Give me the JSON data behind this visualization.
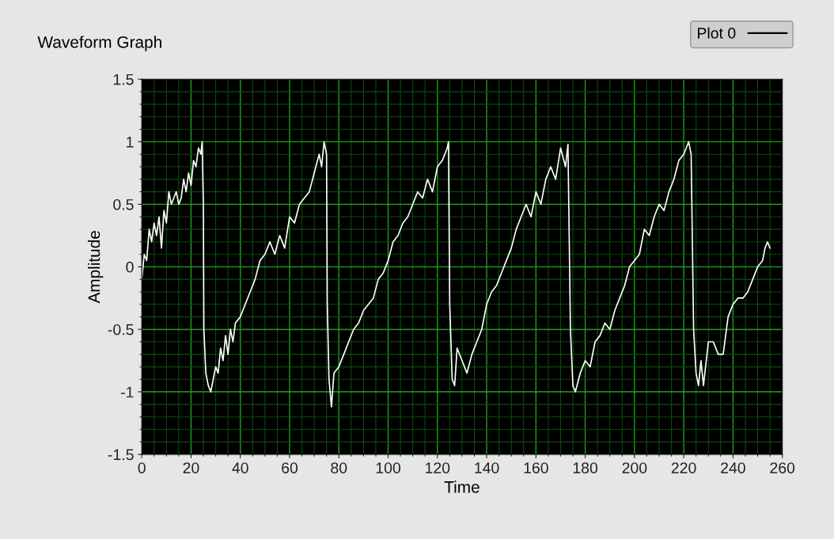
{
  "chart_data": {
    "type": "line",
    "title": "Waveform Graph",
    "xlabel": "Time",
    "ylabel": "Amplitude",
    "xlim": [
      0,
      260
    ],
    "xticks": [
      0,
      {
        "value": 5,
        "label": null
      },
      {
        "value": 10,
        "label": null
      },
      {
        "value": 15,
        "label": null
      },
      20,
      {
        "value": 25,
        "label": null
      },
      {
        "value": 30,
        "label": null
      },
      {
        "value": 35,
        "label": null
      },
      40,
      {
        "value": 45,
        "label": null
      },
      {
        "value": 50,
        "label": null
      },
      {
        "value": 55,
        "label": null
      },
      60,
      {
        "value": 65,
        "label": null
      },
      {
        "value": 70,
        "label": null
      },
      {
        "value": 75,
        "label": null
      },
      80,
      {
        "value": 85,
        "label": null
      },
      {
        "value": 90,
        "label": null
      },
      {
        "value": 95,
        "label": null
      },
      100,
      {
        "value": 105,
        "label": null
      },
      {
        "value": 110,
        "label": null
      },
      {
        "value": 115,
        "label": null
      },
      120,
      {
        "value": 125,
        "label": null
      },
      {
        "value": 130,
        "label": null
      },
      {
        "value": 135,
        "label": null
      },
      140,
      {
        "value": 145,
        "label": null
      },
      {
        "value": 150,
        "label": null
      },
      {
        "value": 155,
        "label": null
      },
      160,
      {
        "value": 165,
        "label": null
      },
      {
        "value": 170,
        "label": null
      },
      {
        "value": 175,
        "label": null
      },
      180,
      {
        "value": 185,
        "label": null
      },
      {
        "value": 190,
        "label": null
      },
      {
        "value": 195,
        "label": null
      },
      200,
      {
        "value": 205,
        "label": null
      },
      {
        "value": 210,
        "label": null
      },
      {
        "value": 215,
        "label": null
      },
      220,
      {
        "value": 225,
        "label": null
      },
      {
        "value": 230,
        "label": null
      },
      {
        "value": 235,
        "label": null
      },
      240,
      {
        "value": 245,
        "label": null
      },
      {
        "value": 250,
        "label": null
      },
      {
        "value": 255,
        "label": null
      },
      260
    ],
    "ylim": [
      -1.5,
      1.5
    ],
    "yticks": [
      -1.5,
      {
        "value": -1.4,
        "label": null
      },
      {
        "value": -1.3,
        "label": null
      },
      {
        "value": -1.2,
        "label": null
      },
      {
        "value": -1.1,
        "label": null
      },
      -1,
      {
        "value": -0.9,
        "label": null
      },
      {
        "value": -0.8,
        "label": null
      },
      {
        "value": -0.7,
        "label": null
      },
      {
        "value": -0.6,
        "label": null
      },
      -0.5,
      {
        "value": -0.4,
        "label": null
      },
      {
        "value": -0.3,
        "label": null
      },
      {
        "value": -0.2,
        "label": null
      },
      {
        "value": -0.1,
        "label": null
      },
      0,
      {
        "value": 0.1,
        "label": null
      },
      {
        "value": 0.2,
        "label": null
      },
      {
        "value": 0.3,
        "label": null
      },
      {
        "value": 0.4,
        "label": null
      },
      0.5,
      {
        "value": 0.6,
        "label": null
      },
      {
        "value": 0.7,
        "label": null
      },
      {
        "value": 0.8,
        "label": null
      },
      {
        "value": 0.9,
        "label": null
      },
      1,
      {
        "value": 1.1,
        "label": null
      },
      {
        "value": 1.2,
        "label": null
      },
      {
        "value": 1.3,
        "label": null
      },
      {
        "value": 1.4,
        "label": null
      },
      1.5
    ],
    "grid": true,
    "legend": "top right",
    "marker": "none",
    "line_style": "solid",
    "series": [
      {
        "name": "Plot 0",
        "color": "#ffffff",
        "x": [
          0,
          1,
          2,
          3,
          4,
          5,
          6,
          7,
          8,
          9,
          10,
          11,
          12,
          13,
          14,
          15,
          16,
          17,
          18,
          19,
          20,
          21,
          22,
          23,
          24,
          24.5,
          25,
          25.2,
          26,
          27,
          28,
          29,
          30,
          31,
          32,
          33,
          34,
          35,
          36,
          37,
          38,
          40,
          42,
          44,
          46,
          48,
          50,
          52,
          54,
          56,
          58,
          60,
          62,
          64,
          66,
          68,
          70,
          72,
          73,
          74,
          75,
          75.3,
          76,
          77,
          78,
          80,
          82,
          84,
          86,
          88,
          90,
          92,
          94,
          96,
          98,
          100,
          102,
          104,
          106,
          108,
          110,
          112,
          114,
          116,
          118,
          120,
          122,
          124,
          124.5,
          125,
          126,
          127,
          128,
          130,
          132,
          134,
          136,
          138,
          140,
          142,
          144,
          146,
          148,
          150,
          152,
          154,
          156,
          158,
          160,
          162,
          164,
          166,
          168,
          170,
          172,
          173,
          174,
          175,
          176,
          178,
          180,
          182,
          184,
          186,
          188,
          190,
          192,
          194,
          196,
          198,
          200,
          202,
          204,
          206,
          208,
          210,
          212,
          214,
          216,
          218,
          220,
          222,
          223,
          224,
          225,
          226,
          227,
          228,
          230,
          232,
          234,
          236,
          238,
          240,
          242,
          244,
          246,
          248,
          250,
          252,
          253,
          254,
          255
        ],
        "values": [
          -0.1,
          0.1,
          0.05,
          0.3,
          0.2,
          0.35,
          0.25,
          0.4,
          0.15,
          0.45,
          0.35,
          0.6,
          0.5,
          0.55,
          0.6,
          0.5,
          0.55,
          0.7,
          0.6,
          0.75,
          0.65,
          0.85,
          0.8,
          0.95,
          0.9,
          1.0,
          0.5,
          -0.5,
          -0.85,
          -0.95,
          -1.0,
          -0.9,
          -0.8,
          -0.85,
          -0.65,
          -0.75,
          -0.55,
          -0.7,
          -0.5,
          -0.6,
          -0.45,
          -0.4,
          -0.3,
          -0.2,
          -0.1,
          0.05,
          0.1,
          0.2,
          0.1,
          0.25,
          0.15,
          0.4,
          0.35,
          0.5,
          0.55,
          0.6,
          0.75,
          0.9,
          0.8,
          1.0,
          0.9,
          -0.3,
          -0.9,
          -1.12,
          -0.85,
          -0.8,
          -0.7,
          -0.6,
          -0.5,
          -0.45,
          -0.35,
          -0.3,
          -0.25,
          -0.1,
          -0.05,
          0.05,
          0.2,
          0.25,
          0.35,
          0.4,
          0.5,
          0.6,
          0.55,
          0.7,
          0.6,
          0.8,
          0.85,
          0.95,
          1.0,
          -0.3,
          -0.9,
          -0.95,
          -0.65,
          -0.75,
          -0.85,
          -0.7,
          -0.6,
          -0.5,
          -0.3,
          -0.2,
          -0.15,
          -0.05,
          0.05,
          0.15,
          0.3,
          0.4,
          0.5,
          0.4,
          0.6,
          0.5,
          0.7,
          0.8,
          0.7,
          0.95,
          0.8,
          0.98,
          -0.5,
          -0.95,
          -1.0,
          -0.85,
          -0.75,
          -0.8,
          -0.6,
          -0.55,
          -0.45,
          -0.5,
          -0.35,
          -0.25,
          -0.15,
          0.0,
          0.05,
          0.1,
          0.3,
          0.25,
          0.4,
          0.5,
          0.45,
          0.6,
          0.7,
          0.85,
          0.9,
          1.0,
          0.9,
          -0.5,
          -0.85,
          -0.95,
          -0.75,
          -0.95,
          -0.6,
          -0.6,
          -0.7,
          -0.7,
          -0.4,
          -0.3,
          -0.25,
          -0.25,
          -0.2,
          -0.1,
          0.0,
          0.05,
          0.15,
          0.2,
          0.15
        ]
      }
    ]
  }
}
